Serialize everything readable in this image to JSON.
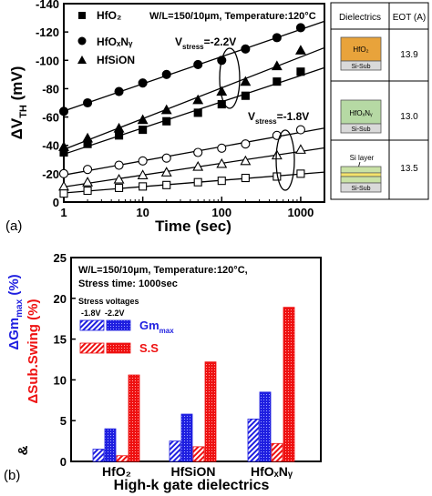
{
  "panel_a": {
    "label": "(a)",
    "legend": [
      "HfO₂",
      "HfOₓNᵧ",
      "HfSiON"
    ],
    "annotation_main": "W/L=150/10µm, Temperature:120°C",
    "vstress_high": "V",
    "vstress_high_sub": "stress",
    "vstress_high_val": "=-2.2V",
    "vstress_low": "V",
    "vstress_low_sub": "stress",
    "vstress_low_val": "=-1.8V",
    "ylabel": "ΔV",
    "ylabel_sub": "TH",
    "ylabel_unit": " (mV)",
    "xlabel": "Time (sec)"
  },
  "table": {
    "col1": "Dielectrics",
    "col2": "EOT (A)",
    "rows": [
      {
        "layer_top": "HfO₂",
        "layer_bottom": "Si-Sub",
        "eot": "13.9",
        "top_color": "#e8a33b"
      },
      {
        "layer_top": "HfOₓNᵧ",
        "layer_bottom": "Si-Sub",
        "eot": "13.0",
        "top_color": "#b6d9a4"
      },
      {
        "layer_top": "Si layer",
        "layer_bottom": "Si-Sub",
        "eot": "13.5",
        "top_color": "#c9e2a6"
      }
    ]
  },
  "panel_b": {
    "label": "(b)",
    "annotation_line1": "W/L=150/10µm, Temperature:120°C,",
    "annotation_line2": "Stress time: 1000sec",
    "stress_title": "Stress voltages",
    "stress_v1": "-1.8V",
    "stress_v2": "-2.2V",
    "legend_gm": "Gm",
    "legend_gm_sub": "max",
    "legend_ss": "S.S",
    "ylabel_top": "ΔGm",
    "ylabel_top_sub": "max",
    "ylabel_top_unit": " (%)",
    "ylabel_mid": "ΔSub.Swing (%)",
    "ylabel_amp": "&",
    "xlabel": "High-k gate dielectrics"
  },
  "chart_data": [
    {
      "type": "scatter",
      "xscale": "log",
      "xlabel": "Time (sec)",
      "ylabel": "ΔV_TH (mV)",
      "xlim": [
        1,
        2000
      ],
      "ylim": [
        0,
        -140
      ],
      "xticks": [
        "1",
        "10",
        "100",
        "1000"
      ],
      "yticks": [
        "0",
        "-20",
        "-40",
        "-60",
        "-80",
        "-100",
        "-120",
        "-140"
      ],
      "x": [
        1,
        2,
        5,
        10,
        20,
        50,
        100,
        200,
        500,
        1000
      ],
      "series": [
        {
          "name": "HfO₂",
          "group": "-2.2V",
          "marker": "filled-square",
          "fill": "#000",
          "values": [
            -35,
            -41,
            -47,
            -51,
            -57,
            -63,
            -69,
            -75,
            -85,
            -92
          ]
        },
        {
          "name": "HfOₓNᵧ",
          "group": "-2.2V",
          "marker": "filled-circle",
          "fill": "#000",
          "values": [
            -64,
            -70,
            -78,
            -84,
            -90,
            -97,
            -100,
            -108,
            -116,
            -123
          ]
        },
        {
          "name": "HfSiON",
          "group": "-2.2V",
          "marker": "filled-triangle",
          "fill": "#000",
          "values": [
            -39,
            -45,
            -52,
            -58,
            -65,
            -72,
            -78,
            -85,
            -96,
            -107
          ]
        },
        {
          "marker": "open-circle",
          "group": "-1.8V",
          "values": [
            -20,
            -23,
            -26,
            -29,
            -31,
            -35,
            -38,
            -41,
            -47,
            -51
          ]
        },
        {
          "marker": "open-triangle",
          "group": "-1.8V",
          "values": [
            -11,
            -14,
            -16,
            -19,
            -21,
            -25,
            -27,
            -29,
            -33,
            -37
          ]
        },
        {
          "marker": "open-square",
          "group": "-1.8V",
          "values": [
            -6,
            -8,
            -10,
            -11,
            -12,
            -14,
            -15,
            -17,
            -18,
            -20
          ]
        }
      ]
    },
    {
      "type": "bar",
      "categories": [
        "HfO₂",
        "HfSiON",
        "HfOₓNᵧ"
      ],
      "xlabel": "High-k gate dielectrics",
      "ylim": [
        0,
        25
      ],
      "yticks": [
        "0",
        "5",
        "10",
        "15",
        "20",
        "25"
      ],
      "series": [
        {
          "name": "Gm_max -1.8V",
          "color": "#1f1fe0",
          "pattern": "hatch",
          "values": [
            1.5,
            2.5,
            5.2
          ]
        },
        {
          "name": "Gm_max -2.2V",
          "color": "#1f1fe0",
          "pattern": "dots",
          "values": [
            4.0,
            5.8,
            8.5
          ]
        },
        {
          "name": "S.S -1.8V",
          "color": "#ee1111",
          "pattern": "hatch",
          "values": [
            0.7,
            1.8,
            2.2
          ]
        },
        {
          "name": "S.S -2.2V",
          "color": "#ee1111",
          "pattern": "dots",
          "values": [
            10.6,
            12.2,
            18.9
          ]
        }
      ]
    }
  ]
}
